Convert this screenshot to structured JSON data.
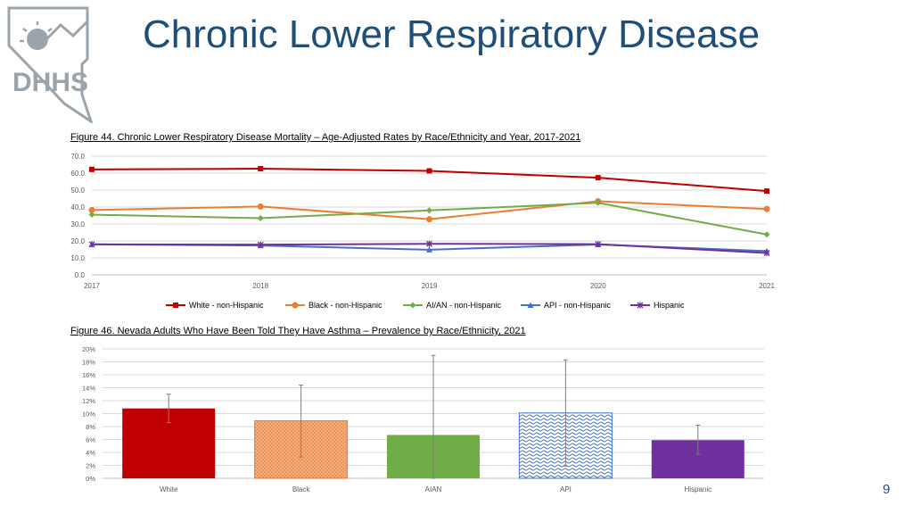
{
  "slide": {
    "title": "Chronic Lower Respiratory Disease",
    "page_number": "9",
    "logo_text": "DHHS"
  },
  "colors": {
    "title": "#1f4e79",
    "white_series": "#c00000",
    "black_series": "#ed7d31",
    "aian_series": "#70ad47",
    "api_series": "#4472c4",
    "hispanic_series": "#7030a0"
  },
  "chart_data": [
    {
      "type": "line",
      "title": "Figure 44. Chronic Lower Respiratory Disease Mortality – Age-Adjusted Rates by Race/Ethnicity and Year, 2017-2021",
      "x": [
        "2017",
        "2018",
        "2019",
        "2020",
        "2021"
      ],
      "ylim": [
        0,
        70
      ],
      "yticks": [
        "0.0",
        "10.0",
        "20.0",
        "30.0",
        "40.0",
        "50.0",
        "60.0",
        "70.0"
      ],
      "grid": true,
      "legend": "bottom",
      "series": [
        {
          "name": "White - non-Hispanic",
          "values": [
            62.2,
            62.6,
            61.3,
            57.3,
            49.4
          ],
          "color": "#c00000",
          "marker": "square"
        },
        {
          "name": "Black - non-Hispanic",
          "values": [
            38.2,
            40.3,
            32.8,
            43.4,
            38.8
          ],
          "color": "#ed7d31",
          "marker": "circle"
        },
        {
          "name": "AI/AN - non-Hispanic",
          "values": [
            35.5,
            33.4,
            38.0,
            42.5,
            23.8
          ],
          "color": "#70ad47",
          "marker": "diamond"
        },
        {
          "name": "API - non-Hispanic",
          "values": [
            18.0,
            17.3,
            14.8,
            17.9,
            14.0
          ],
          "color": "#4472c4",
          "marker": "triangle"
        },
        {
          "name": "Hispanic",
          "values": [
            18.0,
            17.8,
            18.3,
            18.1,
            12.9
          ],
          "color": "#7030a0",
          "marker": "x"
        }
      ]
    },
    {
      "type": "bar",
      "title": "Figure 46. Nevada Adults Who Have Been Told They Have Asthma – Prevalence by Race/Ethnicity, 2021",
      "categories": [
        "White",
        "Black",
        "AIAN",
        "API",
        "Hispanic"
      ],
      "values": [
        10.8,
        8.9,
        6.7,
        10.1,
        5.9
      ],
      "error_low": [
        8.6,
        3.3,
        0.0,
        1.9,
        3.7
      ],
      "error_high": [
        13.0,
        14.4,
        19.0,
        18.3,
        8.2
      ],
      "colors": [
        "#c00000",
        "#ed7d31",
        "#70ad47",
        "#4472c4",
        "#7030a0"
      ],
      "patterns": [
        "solid",
        "dots",
        "solid",
        "waves",
        "solid"
      ],
      "ylim": [
        0,
        20
      ],
      "yticks": [
        "0%",
        "2%",
        "4%",
        "6%",
        "8%",
        "10%",
        "12%",
        "14%",
        "16%",
        "18%",
        "20%"
      ],
      "grid": true
    }
  ]
}
